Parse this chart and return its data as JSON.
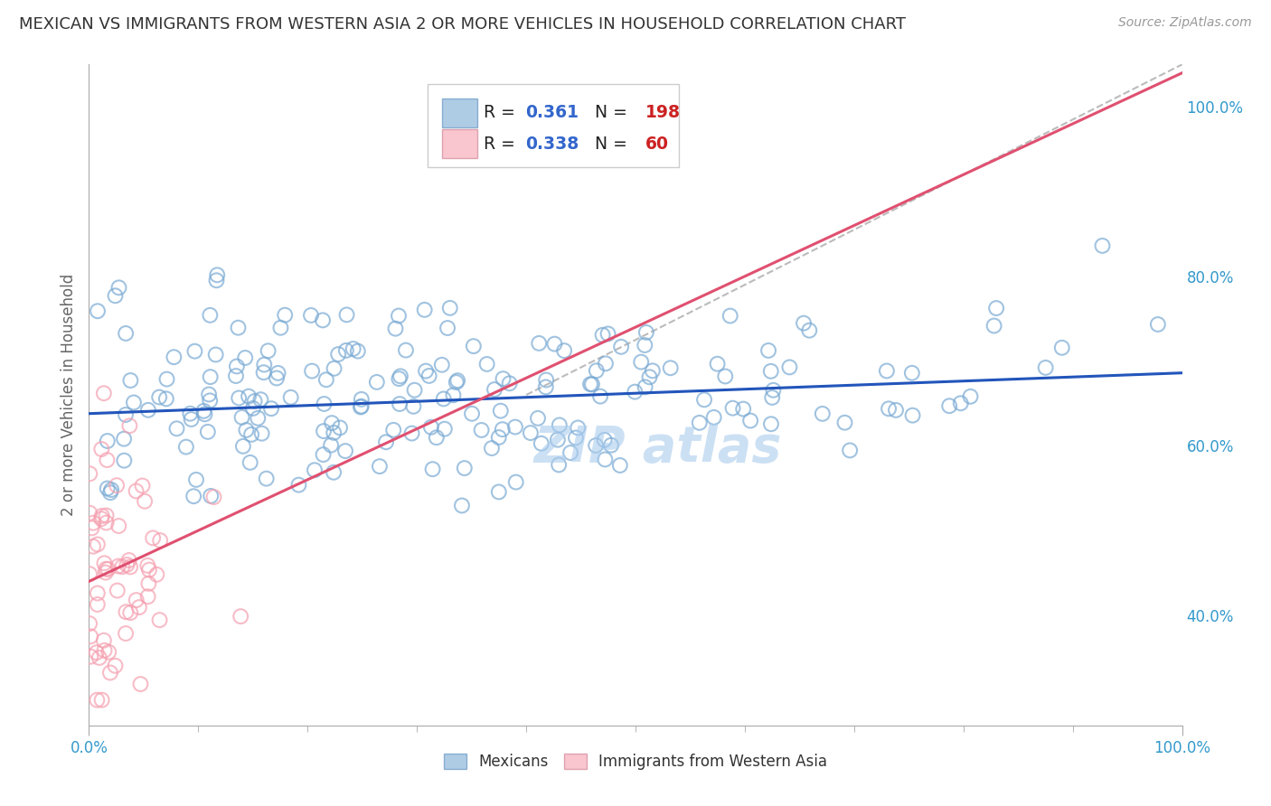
{
  "title": "MEXICAN VS IMMIGRANTS FROM WESTERN ASIA 2 OR MORE VEHICLES IN HOUSEHOLD CORRELATION CHART",
  "source": "Source: ZipAtlas.com",
  "ylabel": "2 or more Vehicles in Household",
  "xlim": [
    0.0,
    1.0
  ],
  "ylim": [
    0.27,
    1.05
  ],
  "x_ticks_major": [
    0.0,
    1.0
  ],
  "x_ticks_minor": [
    0.1,
    0.2,
    0.3,
    0.4,
    0.5,
    0.6,
    0.7,
    0.8,
    0.9
  ],
  "x_tick_labels_major": [
    "0.0%",
    "100.0%"
  ],
  "y_ticks": [
    0.4,
    0.6,
    0.8,
    1.0
  ],
  "y_tick_labels_right": [
    "40.0%",
    "60.0%",
    "80.0%",
    "100.0%"
  ],
  "blue_R": 0.361,
  "blue_N": 198,
  "pink_R": 0.338,
  "pink_N": 60,
  "blue_color": "#7aaad4",
  "pink_color": "#f5a0b0",
  "blue_line_color": "#2255bb",
  "pink_line_color": "#e05070",
  "axis_label_color": "#3399cc",
  "watermark": "ZIP atlas",
  "watermark_color": "#aaccee",
  "background_color": "#ffffff",
  "grid_color": "#dddddd",
  "title_color": "#333333",
  "title_fontsize": 13,
  "blue_intercept": 0.638,
  "blue_slope": 0.048,
  "pink_intercept": 0.44,
  "pink_slope": 0.6
}
